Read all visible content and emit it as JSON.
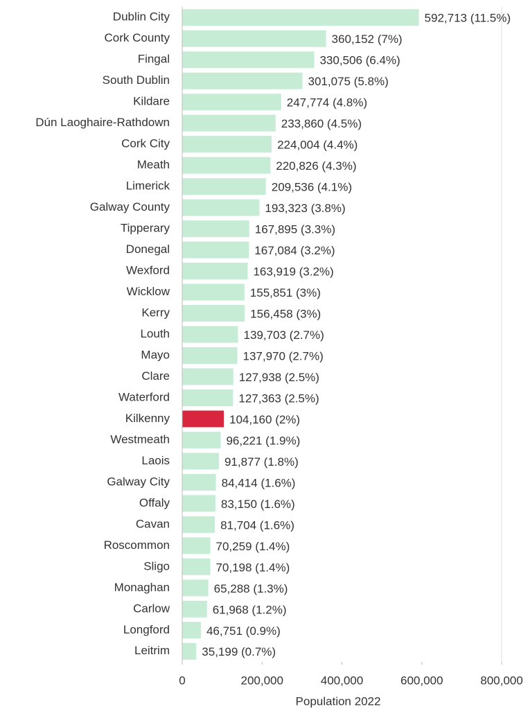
{
  "chart_data": {
    "type": "barh",
    "x_label": "Population 2022",
    "categories": [
      "Dublin City",
      "Cork County",
      "Fingal",
      "South Dublin",
      "Kildare",
      "Dún Laoghaire-Rathdown",
      "Cork City",
      "Meath",
      "Limerick",
      "Galway County",
      "Tipperary",
      "Donegal",
      "Wexford",
      "Wicklow",
      "Kerry",
      "Louth",
      "Mayo",
      "Clare",
      "Waterford",
      "Kilkenny",
      "Westmeath",
      "Laois",
      "Galway City",
      "Offaly",
      "Cavan",
      "Roscommon",
      "Sligo",
      "Monaghan",
      "Carlow",
      "Longford",
      "Leitrim"
    ],
    "values": [
      592713,
      360152,
      330506,
      301075,
      247774,
      233860,
      224004,
      220826,
      209536,
      193323,
      167895,
      167084,
      163919,
      155851,
      156458,
      139703,
      137970,
      127938,
      127363,
      104160,
      96221,
      91877,
      84414,
      83150,
      81704,
      70259,
      70198,
      65288,
      61968,
      46751,
      35199
    ],
    "value_labels": [
      "592,713 (11.5%)",
      "360,152 (7%)",
      "330,506 (6.4%)",
      "301,075 (5.8%)",
      "247,774 (4.8%)",
      "233,860 (4.5%)",
      "224,004 (4.4%)",
      "220,826 (4.3%)",
      "209,536 (4.1%)",
      "193,323 (3.8%)",
      "167,895 (3.3%)",
      "167,084 (3.2%)",
      "163,919 (3.2%)",
      "155,851 (3%)",
      "156,458 (3%)",
      "139,703 (2.7%)",
      "137,970 (2.7%)",
      "127,938 (2.5%)",
      "127,363 (2.5%)",
      "104,160 (2%)",
      "96,221 (1.9%)",
      "91,877 (1.8%)",
      "84,414 (1.6%)",
      "83,150 (1.6%)",
      "81,704 (1.6%)",
      "70,259 (1.4%)",
      "70,198 (1.4%)",
      "65,288 (1.3%)",
      "61,968 (1.2%)",
      "46,751 (0.9%)",
      "35,199 (0.7%)"
    ],
    "color": "#c6ecd6",
    "highlight": {
      "category": "Kilkenny",
      "color": "#d7263d"
    },
    "xlim": [
      0,
      800000
    ],
    "xticks": [
      0,
      {
        "value": 200000,
        "label": "200,000"
      },
      {
        "value": 400000,
        "label": "400,000"
      },
      {
        "value": 600000,
        "label": "600,000"
      },
      {
        "value": 800000,
        "label": "800,000"
      }
    ],
    "grid": false
  }
}
